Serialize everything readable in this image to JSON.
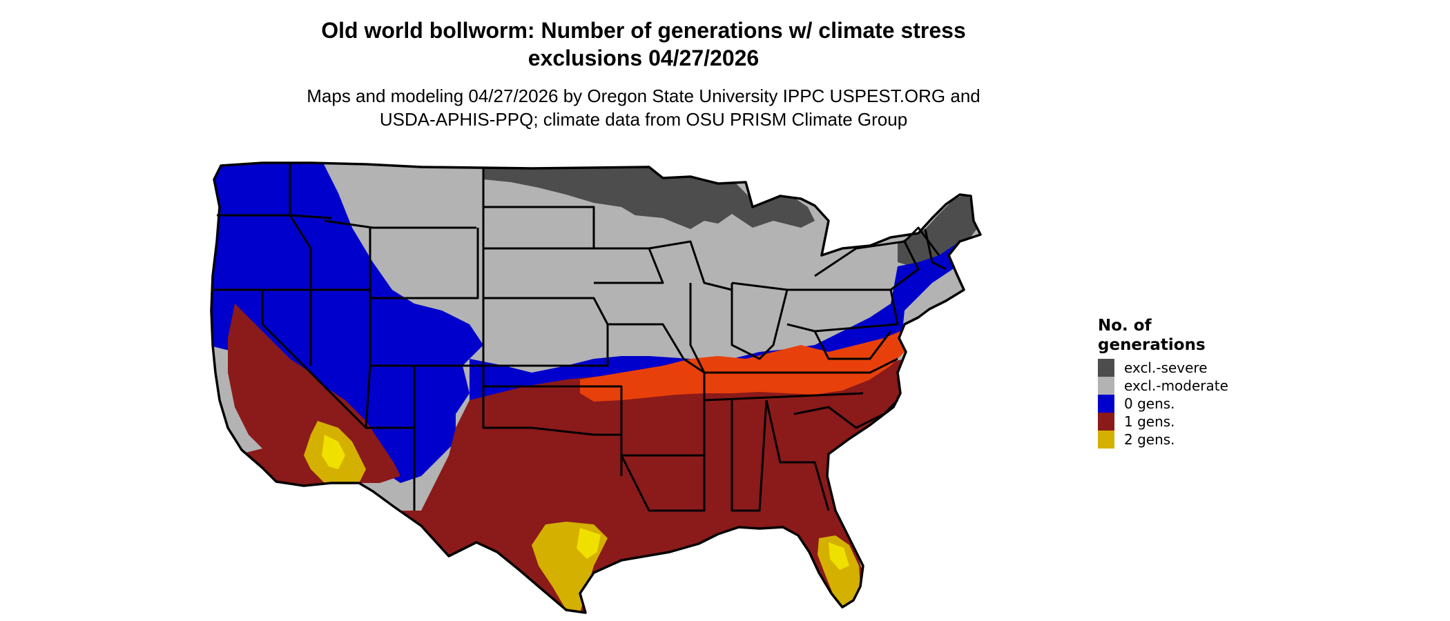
{
  "title_lines": [
    "Old world bollworm: Number of generations w/ climate stress",
    "exclusions 04/27/2026"
  ],
  "subtitle_lines": [
    "Maps and modeling 04/27/2026 by Oregon State University IPPC USPEST.ORG and",
    "USDA-APHIS-PPQ; climate data from OSU PRISM Climate Group"
  ],
  "legend": {
    "title_lines": [
      "No. of",
      "generations"
    ],
    "items": [
      {
        "label": "excl.-severe",
        "color": "#4d4d4d"
      },
      {
        "label": "excl.-moderate",
        "color": "#b3b3b3"
      },
      {
        "label": "0 gens.",
        "color": "#0000cc"
      },
      {
        "label": "1 gens.",
        "color": "#8b1a1a"
      },
      {
        "label": "2 gens.",
        "color": "#d4b000"
      }
    ]
  },
  "map_colors": {
    "severe": "#4d4d4d",
    "moderate": "#b3b3b3",
    "zero": "#0000cc",
    "one": "#8b1a1a",
    "one_transition": "#e8400a",
    "two": "#d4b000",
    "two_bright": "#f0e000",
    "boundary": "#000000"
  }
}
